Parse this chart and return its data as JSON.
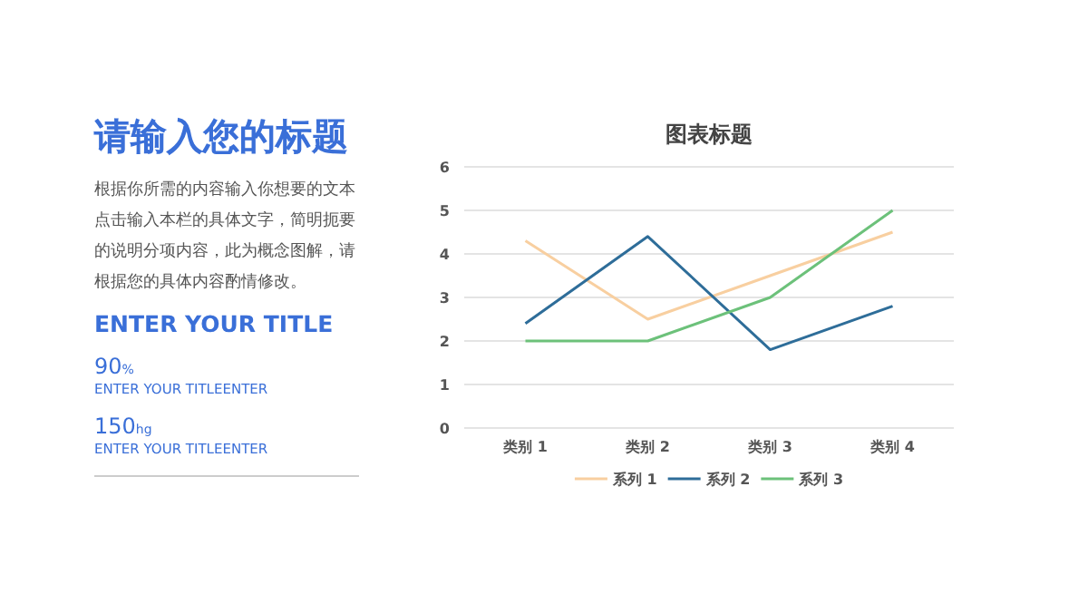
{
  "chart_data": [
    {
      "type": "other",
      "title": "请输入您的标题",
      "annotations": [
        "根据你所需的内容输入你想要的文本点击输入本栏的具体文字，简明扼要的说明分项内容，此为概念图解，请根据您的具体内容酌情修改。",
        "ENTER YOUR TITLE",
        "90%",
        "ENTER YOUR TITLEENTER",
        "150hg",
        "ENTER YOUR TITLEENTER"
      ]
    },
    {
      "type": "line",
      "title": "图表标题",
      "categories": [
        "类别 1",
        "类别 2",
        "类别 3",
        "类别 4"
      ],
      "series": [
        {
          "name": "系列 1",
          "color": "#f8cfa0",
          "values": [
            4.3,
            2.5,
            3.5,
            4.5
          ]
        },
        {
          "name": "系列 2",
          "color": "#2e6d99",
          "values": [
            2.4,
            4.4,
            1.8,
            2.8
          ]
        },
        {
          "name": "系列 3",
          "color": "#6cc17a",
          "values": [
            2,
            2,
            3,
            5
          ]
        }
      ],
      "ylim": [
        0,
        6
      ],
      "yticks": [
        0,
        1,
        2,
        3,
        4,
        5,
        6
      ],
      "grid": "y",
      "legend": "bottom"
    }
  ]
}
